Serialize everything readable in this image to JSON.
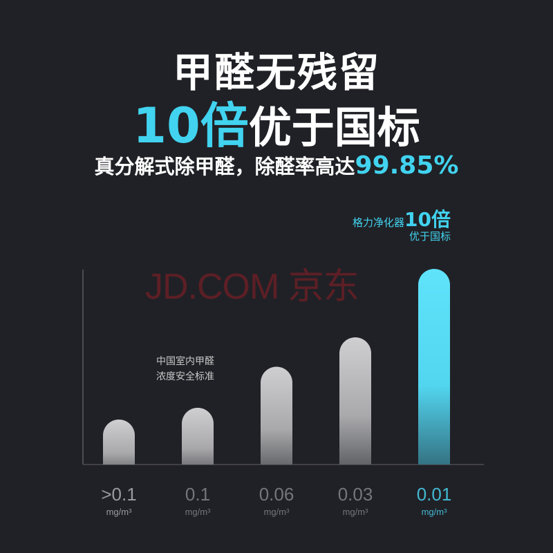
{
  "headline": {
    "line1": "甲醛无残留",
    "line2_highlight": "10倍",
    "line2_rest": "优于国标",
    "line3_text": "真分解式除甲醛，除醛率高达",
    "line3_highlight": "99.85%"
  },
  "watermark": "JD.COM 京东",
  "colors": {
    "accent": "#41d3ef",
    "background": "#202126",
    "bar_gray": "#c8c8ca"
  },
  "chart_data": {
    "type": "bar",
    "categories": [
      ">0.1",
      "0.1",
      "0.06",
      "0.03",
      "0.01"
    ],
    "unit": "mg/m³",
    "values": [
      0.23,
      0.29,
      0.5,
      0.65,
      1.0
    ],
    "highlight_index": 4,
    "annotation_standard": [
      "中国室内甲醛",
      "浓度安全标准"
    ],
    "annotation_top": {
      "prefix": "格力净化器",
      "big": "10倍",
      "line2": "优于国标"
    }
  }
}
